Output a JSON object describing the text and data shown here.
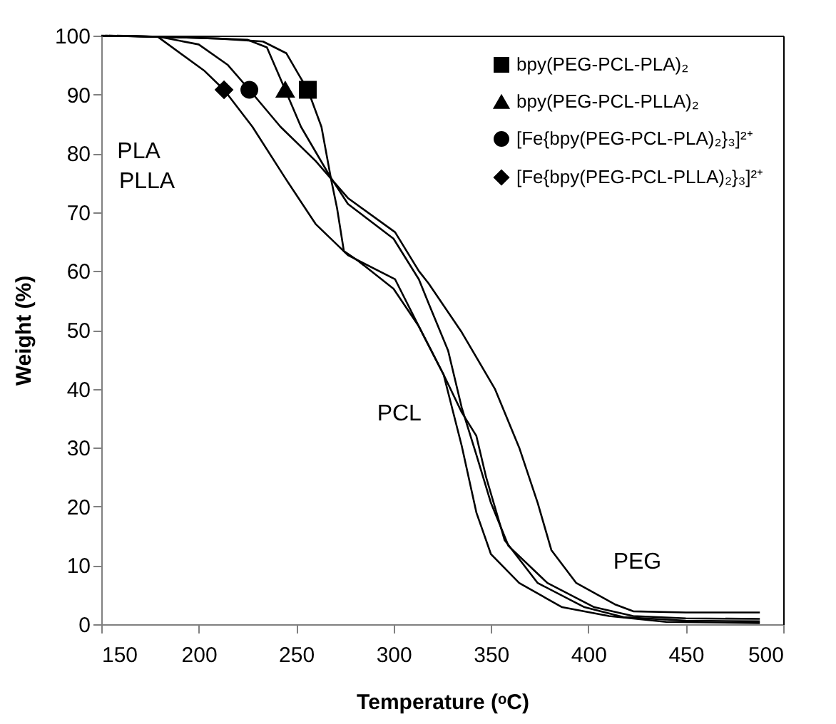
{
  "chart_data": {
    "type": "line",
    "xlabel": "Temperature (ᵒC)",
    "ylabel": "Weight (%)",
    "xlim": [
      150,
      500
    ],
    "ylim": [
      0,
      100
    ],
    "xticks": [
      150,
      200,
      250,
      300,
      350,
      400,
      450,
      500
    ],
    "yticks": [
      0,
      10,
      20,
      30,
      40,
      50,
      60,
      70,
      80,
      90,
      100
    ],
    "legend": "top right",
    "grid": false,
    "line_style": "solid",
    "annotations": [
      "PLA",
      "PLLA",
      "PCL",
      "PEG"
    ],
    "series": [
      {
        "name": "bpy(PEG-PCL-PLA)₂",
        "color": "#000000",
        "x": [
          158,
          180,
          210,
          233,
          245,
          252,
          256,
          263,
          268,
          271,
          274.5,
          282,
          300,
          313,
          325.7,
          335,
          342.5,
          350,
          364.5,
          386.5,
          410.6,
          440,
          488
        ],
        "values": [
          100,
          99.8,
          99.5,
          99,
          97,
          93,
          90.8,
          84.5,
          75.5,
          70.7,
          63.4,
          61.7,
          57,
          50.6,
          42.4,
          30.3,
          19,
          11.9,
          7,
          2.9,
          1.4,
          0.4,
          0.2
        ]
      },
      {
        "name": "bpy(PEG-PCL-PLLA)₂",
        "color": "#000000",
        "x": [
          154,
          180,
          210,
          225,
          235,
          244.4,
          252.5,
          267,
          276.6,
          300,
          313,
          318,
          328,
          335,
          342.5,
          350,
          359,
          379,
          403,
          423,
          450,
          488
        ],
        "values": [
          100,
          99.8,
          99.5,
          99.3,
          98,
          90.8,
          84.5,
          76.3,
          71.4,
          65.5,
          58.6,
          54.5,
          46.5,
          36.8,
          28.8,
          20.6,
          13.3,
          7,
          2.9,
          1.4,
          1,
          0.9
        ]
      },
      {
        "name": "[Fe{bpy(PEG-PCL-PLA)₂}₃]²⁺",
        "color": "#000000",
        "x": [
          150,
          180,
          200,
          215,
          226,
          242,
          260,
          276.6,
          300.8,
          313,
          318,
          335,
          352,
          364.5,
          374,
          381,
          393.8,
          413.5,
          423,
          450,
          488
        ],
        "values": [
          100,
          99.8,
          98.5,
          95,
          90.8,
          84.5,
          78.7,
          72.4,
          66.6,
          60,
          57.9,
          49.6,
          40,
          30,
          20.6,
          12.6,
          7,
          3.4,
          2.2,
          2,
          2
        ]
      },
      {
        "name": "[Fe{bpy(PEG-PCL-PLLA)₂}₃]²⁺",
        "color": "#000000",
        "x": [
          152,
          179,
          203,
          213,
          227.6,
          245,
          260,
          276.6,
          300.8,
          313,
          325.7,
          335,
          342.5,
          347.5,
          357,
          374,
          398,
          418,
          450,
          488
        ],
        "values": [
          100,
          99.8,
          94,
          90.8,
          84.5,
          75.5,
          68,
          62.7,
          58.6,
          50.6,
          42.4,
          36,
          32,
          25,
          14.3,
          7,
          2.9,
          1.2,
          0.6,
          0.5
        ]
      },
      {
        "type": "scatter",
        "color": "#000000",
        "marker": "square",
        "x": [
          256
        ],
        "values": [
          90.8
        ]
      },
      {
        "type": "scatter",
        "color": "#000000",
        "marker": "triangle",
        "x": [
          244.4
        ],
        "values": [
          90.8
        ]
      },
      {
        "type": "scatter",
        "color": "#000000",
        "marker": "circle",
        "x": [
          226
        ],
        "values": [
          90.8
        ]
      },
      {
        "type": "scatter",
        "color": "#000000",
        "marker": "diamond",
        "x": [
          213
        ],
        "values": [
          90.8
        ]
      }
    ]
  }
}
